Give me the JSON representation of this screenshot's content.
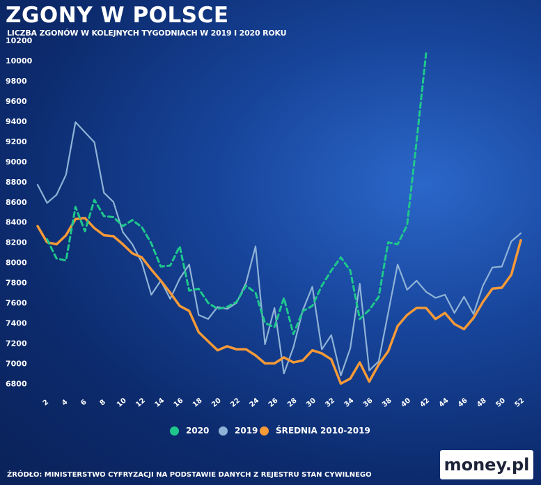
{
  "header": {
    "title": "ZGONY W POLSCE",
    "subtitle": "LICZBA ZGONÓW W KOLEJNYCH TYGODNIACH W 2019 I 2020 ROKU"
  },
  "footer": {
    "source": "ŹRÓDŁO: MINISTERSTWO CYFRYZACJI NA PODSTAWIE DANYCH Z REJESTRU STAN CYWILNEGO",
    "logo": "money.pl"
  },
  "chart_data": {
    "type": "line",
    "y_ticks": [
      6800,
      7000,
      7200,
      7400,
      7600,
      7800,
      8000,
      8200,
      8400,
      8600,
      8800,
      9000,
      9200,
      9400,
      9600,
      9800,
      10000,
      10200
    ],
    "x_ticks": [
      2,
      4,
      6,
      8,
      10,
      12,
      14,
      16,
      18,
      20,
      22,
      24,
      26,
      28,
      30,
      32,
      34,
      36,
      38,
      40,
      42,
      44,
      46,
      48,
      50,
      52
    ],
    "xlim": [
      1,
      52
    ],
    "ylim": [
      6700,
      10200
    ],
    "grid": false,
    "legend_position": "bottom",
    "series": [
      {
        "name": "2020",
        "color": "#1fc88c",
        "dashed": true,
        "x": [
          2,
          3,
          4,
          5,
          6,
          7,
          8,
          9,
          10,
          11,
          12,
          13,
          14,
          15,
          16,
          17,
          18,
          19,
          20,
          21,
          22,
          23,
          24,
          25,
          26,
          27,
          28,
          29,
          30,
          31,
          32,
          33,
          34,
          35,
          36,
          37,
          38,
          39,
          40,
          41,
          42
        ],
        "values": [
          8230,
          8040,
          8020,
          8550,
          8310,
          8620,
          8460,
          8450,
          8360,
          8420,
          8350,
          8190,
          7960,
          7970,
          8160,
          7720,
          7740,
          7600,
          7540,
          7560,
          7610,
          7770,
          7700,
          7400,
          7360,
          7650,
          7290,
          7520,
          7570,
          7770,
          7920,
          8050,
          7920,
          7440,
          7530,
          7660,
          8200,
          8180,
          8370,
          9200,
          10070
        ]
      },
      {
        "name": "2019",
        "color": "#8fb3d6",
        "dashed": false,
        "x": [
          1,
          2,
          3,
          4,
          5,
          6,
          7,
          8,
          9,
          10,
          11,
          12,
          13,
          14,
          15,
          16,
          17,
          18,
          19,
          20,
          21,
          22,
          23,
          24,
          25,
          26,
          27,
          28,
          29,
          30,
          31,
          32,
          33,
          34,
          35,
          36,
          37,
          38,
          39,
          40,
          41,
          42,
          43,
          44,
          45,
          46,
          47,
          48,
          49,
          50,
          51,
          52
        ],
        "values": [
          8770,
          8590,
          8670,
          8870,
          9390,
          9290,
          9190,
          8690,
          8600,
          8300,
          8180,
          8000,
          7680,
          7820,
          7640,
          7840,
          7980,
          7480,
          7440,
          7560,
          7540,
          7600,
          7800,
          8160,
          7190,
          7550,
          6900,
          7160,
          7530,
          7760,
          7140,
          7280,
          6880,
          7150,
          7790,
          6930,
          7020,
          7500,
          7980,
          7730,
          7820,
          7710,
          7650,
          7680,
          7500,
          7660,
          7490,
          7770,
          7950,
          7960,
          8210,
          8290
        ]
      },
      {
        "name": "ŚREDNIA 2010-2019",
        "color": "#f79a37",
        "dashed": false,
        "x": [
          1,
          2,
          3,
          4,
          5,
          6,
          7,
          8,
          9,
          10,
          11,
          12,
          13,
          14,
          15,
          16,
          17,
          18,
          19,
          20,
          21,
          22,
          23,
          24,
          25,
          26,
          27,
          28,
          29,
          30,
          31,
          32,
          33,
          34,
          35,
          36,
          37,
          38,
          39,
          40,
          41,
          42,
          43,
          44,
          45,
          46,
          47,
          48,
          49,
          50,
          51,
          52
        ],
        "values": [
          8360,
          8200,
          8180,
          8270,
          8430,
          8440,
          8340,
          8270,
          8260,
          8180,
          8090,
          8050,
          7930,
          7820,
          7700,
          7570,
          7520,
          7310,
          7220,
          7130,
          7170,
          7140,
          7140,
          7080,
          7000,
          7000,
          7060,
          7010,
          7030,
          7130,
          7100,
          7040,
          6800,
          6850,
          7010,
          6820,
          6990,
          7120,
          7370,
          7480,
          7550,
          7550,
          7440,
          7500,
          7390,
          7340,
          7450,
          7610,
          7740,
          7750,
          7880,
          8220
        ]
      }
    ]
  }
}
